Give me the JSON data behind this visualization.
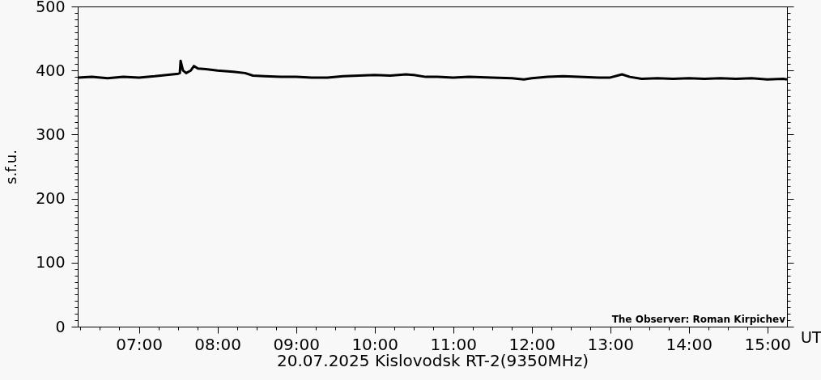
{
  "chart_data": {
    "type": "line",
    "xlabel": "20.07.2025 Kislovodsk RT-2(9350MHz)",
    "ylabel": "s.f.u.",
    "annotations": [
      "The Observer: Roman Kirpichev",
      "UT"
    ],
    "xlim": [
      6.22,
      15.25
    ],
    "ylim": [
      0,
      500
    ],
    "xticks": [
      {
        "value": 6.25,
        "label": null
      },
      {
        "value": 6.5,
        "label": null
      },
      {
        "value": 6.75,
        "label": null
      },
      {
        "value": 7,
        "label": "07:00"
      },
      {
        "value": 7.25,
        "label": null
      },
      {
        "value": 7.5,
        "label": null
      },
      {
        "value": 7.75,
        "label": null
      },
      {
        "value": 8,
        "label": "08:00"
      },
      {
        "value": 8.25,
        "label": null
      },
      {
        "value": 8.5,
        "label": null
      },
      {
        "value": 8.75,
        "label": null
      },
      {
        "value": 9,
        "label": "09:00"
      },
      {
        "value": 9.25,
        "label": null
      },
      {
        "value": 9.5,
        "label": null
      },
      {
        "value": 9.75,
        "label": null
      },
      {
        "value": 10,
        "label": "10:00"
      },
      {
        "value": 10.25,
        "label": null
      },
      {
        "value": 10.5,
        "label": null
      },
      {
        "value": 10.75,
        "label": null
      },
      {
        "value": 11,
        "label": "11:00"
      },
      {
        "value": 11.25,
        "label": null
      },
      {
        "value": 11.5,
        "label": null
      },
      {
        "value": 11.75,
        "label": null
      },
      {
        "value": 12,
        "label": "12:00"
      },
      {
        "value": 12.25,
        "label": null
      },
      {
        "value": 12.5,
        "label": null
      },
      {
        "value": 12.75,
        "label": null
      },
      {
        "value": 13,
        "label": "13:00"
      },
      {
        "value": 13.25,
        "label": null
      },
      {
        "value": 13.5,
        "label": null
      },
      {
        "value": 13.75,
        "label": null
      },
      {
        "value": 14,
        "label": "14:00"
      },
      {
        "value": 14.25,
        "label": null
      },
      {
        "value": 14.5,
        "label": null
      },
      {
        "value": 14.75,
        "label": null
      },
      {
        "value": 15,
        "label": "15:00"
      }
    ],
    "yticks": [
      0,
      {
        "value": 10,
        "label": null
      },
      {
        "value": 20,
        "label": null
      },
      {
        "value": 30,
        "label": null
      },
      {
        "value": 40,
        "label": null
      },
      {
        "value": 50,
        "label": null
      },
      {
        "value": 60,
        "label": null
      },
      {
        "value": 70,
        "label": null
      },
      {
        "value": 80,
        "label": null
      },
      {
        "value": 90,
        "label": null
      },
      100,
      {
        "value": 110,
        "label": null
      },
      {
        "value": 120,
        "label": null
      },
      {
        "value": 130,
        "label": null
      },
      {
        "value": 140,
        "label": null
      },
      {
        "value": 150,
        "label": null
      },
      {
        "value": 160,
        "label": null
      },
      {
        "value": 170,
        "label": null
      },
      {
        "value": 180,
        "label": null
      },
      {
        "value": 190,
        "label": null
      },
      200,
      {
        "value": 210,
        "label": null
      },
      {
        "value": 220,
        "label": null
      },
      {
        "value": 230,
        "label": null
      },
      {
        "value": 240,
        "label": null
      },
      {
        "value": 250,
        "label": null
      },
      {
        "value": 260,
        "label": null
      },
      {
        "value": 270,
        "label": null
      },
      {
        "value": 280,
        "label": null
      },
      {
        "value": 290,
        "label": null
      },
      300,
      {
        "value": 310,
        "label": null
      },
      {
        "value": 320,
        "label": null
      },
      {
        "value": 330,
        "label": null
      },
      {
        "value": 340,
        "label": null
      },
      {
        "value": 350,
        "label": null
      },
      {
        "value": 360,
        "label": null
      },
      {
        "value": 370,
        "label": null
      },
      {
        "value": 380,
        "label": null
      },
      {
        "value": 390,
        "label": null
      },
      400,
      {
        "value": 410,
        "label": null
      },
      {
        "value": 420,
        "label": null
      },
      {
        "value": 430,
        "label": null
      },
      {
        "value": 440,
        "label": null
      },
      {
        "value": 450,
        "label": null
      },
      {
        "value": 460,
        "label": null
      },
      {
        "value": 470,
        "label": null
      },
      {
        "value": 480,
        "label": null
      },
      {
        "value": 490,
        "label": null
      },
      500
    ],
    "grid": false,
    "marker": "none",
    "line_style": "solid",
    "x": [
      6.22,
      6.4,
      6.6,
      6.8,
      7.0,
      7.2,
      7.35,
      7.5,
      7.52,
      7.53,
      7.56,
      7.6,
      7.66,
      7.7,
      7.75,
      7.85,
      8.0,
      8.2,
      8.35,
      8.45,
      8.6,
      8.8,
      9.0,
      9.2,
      9.4,
      9.6,
      9.8,
      10.0,
      10.2,
      10.4,
      10.5,
      10.65,
      10.8,
      11.0,
      11.2,
      11.5,
      11.75,
      11.9,
      12.0,
      12.2,
      12.4,
      12.6,
      12.85,
      13.0,
      13.15,
      13.25,
      13.4,
      13.6,
      13.8,
      14.0,
      14.2,
      14.4,
      14.6,
      14.8,
      15.0,
      15.2,
      15.25
    ],
    "series": [
      {
        "color": "#000000",
        "values": [
          389,
          390,
          388,
          390,
          389,
          391,
          393,
          395,
          396,
          415,
          400,
          396,
          400,
          407,
          403,
          402,
          400,
          398,
          396,
          392,
          391,
          390,
          390,
          389,
          389,
          391,
          392,
          393,
          392,
          394,
          393,
          390,
          390,
          389,
          390,
          389,
          388,
          386,
          388,
          390,
          391,
          390,
          389,
          389,
          394,
          390,
          387,
          388,
          387,
          388,
          387,
          388,
          387,
          388,
          386,
          387,
          386
        ]
      }
    ]
  }
}
